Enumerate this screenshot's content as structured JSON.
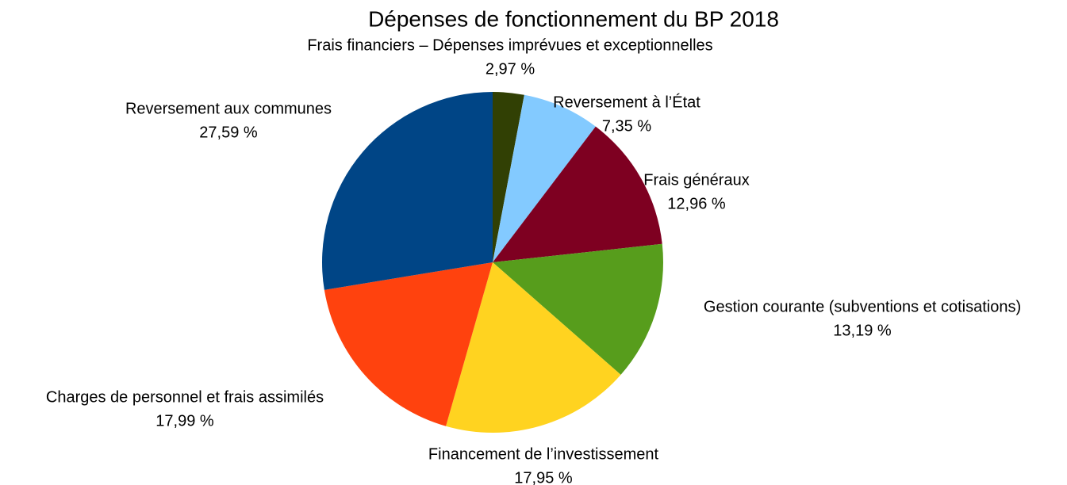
{
  "chart_data": {
    "type": "pie",
    "title": "Dépenses de fonctionnement du BP 2018",
    "categories": [
      "Frais financiers – Dépenses imprévues et exceptionnelles",
      "Reversement à l’État",
      "Frais généraux",
      "Gestion courante (subventions et cotisations)",
      "Financement de l’investissement",
      "Charges de personnel et frais assimilés",
      "Reversement aux communes"
    ],
    "values": [
      2.97,
      7.35,
      12.96,
      13.19,
      17.95,
      17.99,
      27.59
    ],
    "value_labels": [
      "2,97 %",
      "7,35 %",
      "12,96 %",
      "13,19 %",
      "17,95 %",
      "17,99 %",
      "27,59 %"
    ],
    "colors": [
      "#314004",
      "#83caff",
      "#7e0021",
      "#579d1c",
      "#ffd320",
      "#ff420e",
      "#004586"
    ]
  }
}
